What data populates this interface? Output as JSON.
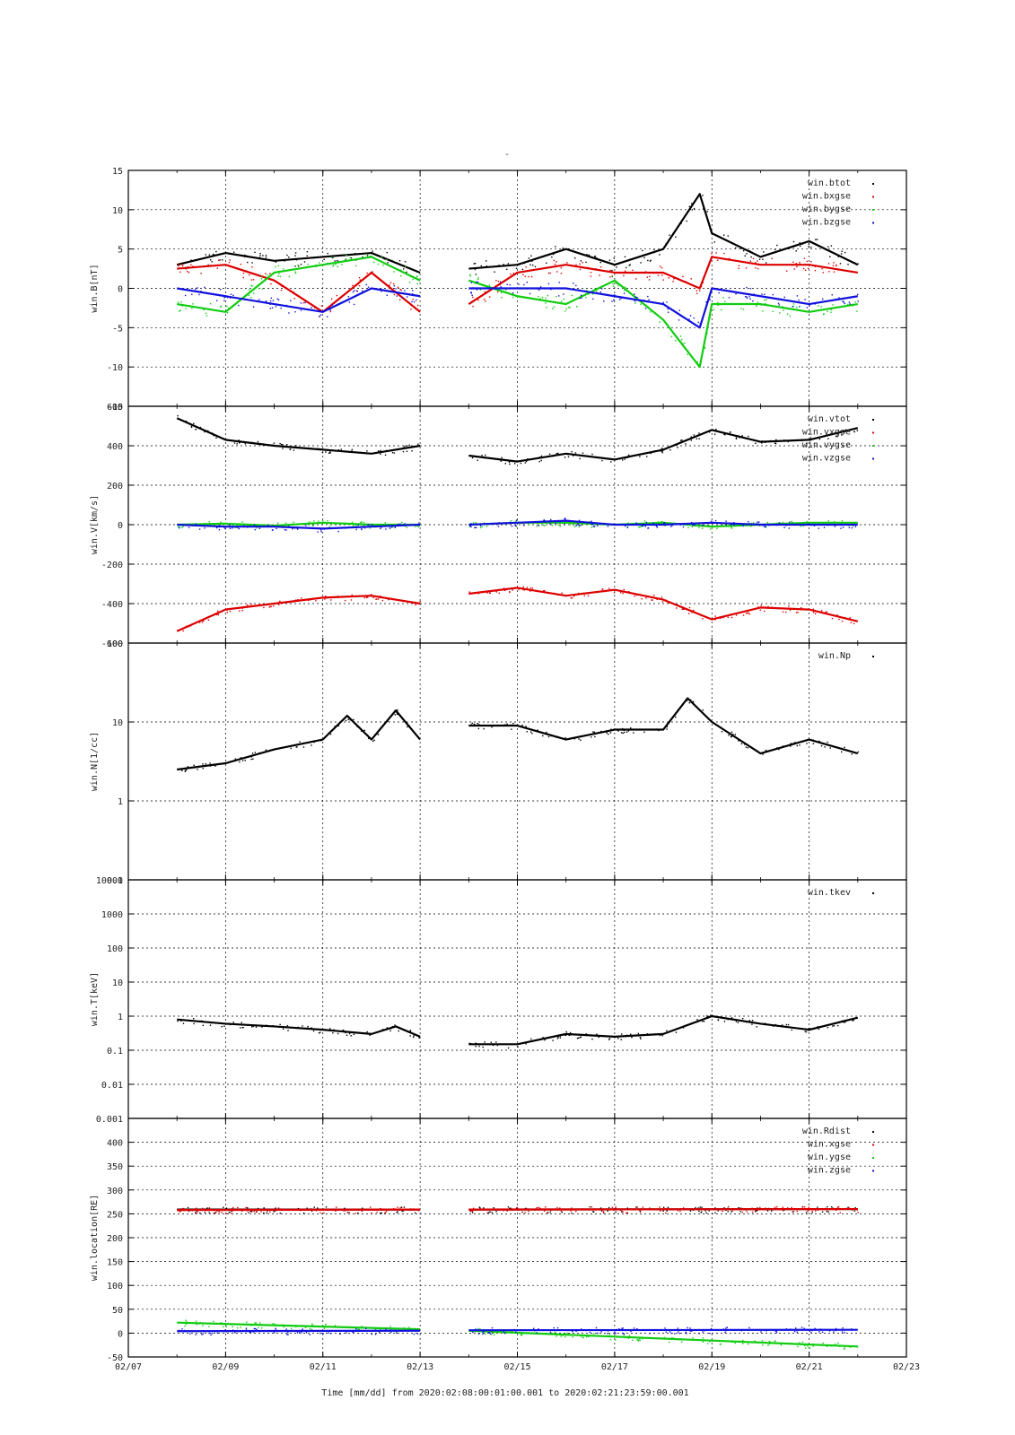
{
  "page": {
    "title": "-",
    "footer": "Time [mm/dd]  from 2020:02:08:00:01:00.001  to  2020:02:21:23:59:00.001"
  },
  "x_axis": {
    "unit_label": "Time [mm/dd]",
    "range": [
      "02/07",
      "02/23"
    ],
    "tick_labels": [
      "02/07",
      "02/09",
      "02/11",
      "02/13",
      "02/15",
      "02/17",
      "02/19",
      "02/21",
      "02/23"
    ],
    "data_span": [
      "2020:02:08:00:01:00.001",
      "2020:02:21:23:59:00.001"
    ]
  },
  "colors": {
    "black": "#000000",
    "red": "#dd0000",
    "green": "#11cc11",
    "blue": "#1111dd"
  },
  "chart_data": [
    {
      "type": "scatter",
      "ylabel": "win.B[nT]",
      "ylim": [
        -15,
        15
      ],
      "yticks": [
        15,
        10,
        5,
        0,
        -5,
        -10,
        -15
      ],
      "log": false,
      "grid": true,
      "legend_position": "top-right",
      "series": [
        {
          "name": "win.btot",
          "color": "#000000",
          "x": [
            "02/08",
            "02/09",
            "02/10",
            "02/11",
            "02/12",
            "02/13",
            "02/14",
            "02/15",
            "02/16",
            "02/17",
            "02/18",
            "02/18 18:00",
            "02/19",
            "02/20",
            "02/21",
            "02/22"
          ],
          "values": [
            3,
            4.5,
            3.5,
            4,
            4.5,
            2,
            2.5,
            3,
            5,
            3,
            5,
            12,
            7,
            4,
            6,
            3
          ]
        },
        {
          "name": "win.bxgse",
          "color": "#dd0000",
          "x": [
            "02/08",
            "02/09",
            "02/10",
            "02/11",
            "02/12",
            "02/13",
            "02/14",
            "02/15",
            "02/16",
            "02/17",
            "02/18",
            "02/18 18:00",
            "02/19",
            "02/20",
            "02/21",
            "02/22"
          ],
          "values": [
            2.5,
            3,
            1,
            -3,
            2,
            -3,
            -2,
            2,
            3,
            2,
            2,
            0,
            4,
            3,
            3,
            2
          ]
        },
        {
          "name": "win.bygse",
          "color": "#11cc11",
          "x": [
            "02/08",
            "02/09",
            "02/10",
            "02/11",
            "02/12",
            "02/13",
            "02/14",
            "02/15",
            "02/16",
            "02/17",
            "02/18",
            "02/18 18:00",
            "02/19",
            "02/20",
            "02/21",
            "02/22"
          ],
          "values": [
            -2,
            -3,
            2,
            3,
            4,
            1,
            1,
            -1,
            -2,
            1,
            -4,
            -10,
            -2,
            -2,
            -3,
            -2
          ]
        },
        {
          "name": "win.bzgse",
          "color": "#1111dd",
          "x": [
            "02/08",
            "02/09",
            "02/10",
            "02/11",
            "02/12",
            "02/13",
            "02/14",
            "02/15",
            "02/16",
            "02/17",
            "02/18",
            "02/18 18:00",
            "02/19",
            "02/20",
            "02/21",
            "02/22"
          ],
          "values": [
            0,
            -1,
            -2,
            -3,
            0,
            -1,
            0,
            0,
            0,
            -1,
            -2,
            -5,
            0,
            -1,
            -2,
            -1
          ]
        }
      ]
    },
    {
      "type": "scatter",
      "ylabel": "win.V[km/s]",
      "ylim": [
        -600,
        600
      ],
      "yticks": [
        600,
        400,
        200,
        0,
        -200,
        -400,
        -600
      ],
      "log": false,
      "grid": true,
      "legend_position": "top-right",
      "series": [
        {
          "name": "win.vtot",
          "color": "#000000",
          "x": [
            "02/08",
            "02/09",
            "02/10",
            "02/11",
            "02/12",
            "02/13",
            "02/14",
            "02/15",
            "02/16",
            "02/17",
            "02/18",
            "02/19",
            "02/20",
            "02/21",
            "02/22"
          ],
          "values": [
            540,
            430,
            400,
            380,
            360,
            400,
            350,
            320,
            360,
            330,
            380,
            480,
            420,
            430,
            490
          ]
        },
        {
          "name": "win.vxgse",
          "color": "#dd0000",
          "x": [
            "02/08",
            "02/09",
            "02/10",
            "02/11",
            "02/12",
            "02/13",
            "02/14",
            "02/15",
            "02/16",
            "02/17",
            "02/18",
            "02/19",
            "02/20",
            "02/21",
            "02/22"
          ],
          "values": [
            -540,
            -430,
            -400,
            -370,
            -360,
            -400,
            -350,
            -320,
            -360,
            -330,
            -380,
            -480,
            -420,
            -430,
            -490
          ]
        },
        {
          "name": "win.vygse",
          "color": "#11cc11",
          "x": [
            "02/08",
            "02/09",
            "02/10",
            "02/11",
            "02/12",
            "02/13",
            "02/14",
            "02/15",
            "02/16",
            "02/17",
            "02/18",
            "02/19",
            "02/20",
            "02/21",
            "02/22"
          ],
          "values": [
            0,
            5,
            -5,
            10,
            0,
            0,
            0,
            10,
            10,
            0,
            10,
            -10,
            0,
            10,
            10
          ]
        },
        {
          "name": "win.vzgse",
          "color": "#1111dd",
          "x": [
            "02/08",
            "02/09",
            "02/10",
            "02/11",
            "02/12",
            "02/13",
            "02/14",
            "02/15",
            "02/16",
            "02/17",
            "02/18",
            "02/19",
            "02/20",
            "02/21",
            "02/22"
          ],
          "values": [
            0,
            -10,
            -10,
            -20,
            -10,
            0,
            0,
            10,
            20,
            0,
            0,
            10,
            0,
            0,
            0
          ]
        }
      ]
    },
    {
      "type": "scatter",
      "ylabel": "win.N[1/cc]",
      "ylim": [
        0.1,
        100
      ],
      "yticks": [
        100,
        10,
        1,
        0.1
      ],
      "log": true,
      "grid": true,
      "legend_position": "top-right",
      "series": [
        {
          "name": "win.Np",
          "color": "#000000",
          "x": [
            "02/08",
            "02/09",
            "02/10",
            "02/11",
            "02/11 12:00",
            "02/12",
            "02/12 12:00",
            "02/13",
            "02/14",
            "02/15",
            "02/16",
            "02/17",
            "02/18",
            "02/18 12:00",
            "02/19",
            "02/20",
            "02/21",
            "02/22"
          ],
          "values": [
            2.5,
            3,
            4.5,
            6,
            12,
            6,
            14,
            6,
            9,
            9,
            6,
            8,
            8,
            20,
            10,
            4,
            6,
            4
          ]
        }
      ]
    },
    {
      "type": "scatter",
      "ylabel": "win.T[keV]",
      "ylim": [
        0.001,
        10000
      ],
      "yticks": [
        10000,
        1000,
        100,
        10,
        1,
        0.1,
        0.01,
        0.001
      ],
      "log": true,
      "grid": true,
      "legend_position": "top-right",
      "series": [
        {
          "name": "win.tkev",
          "color": "#000000",
          "x": [
            "02/08",
            "02/09",
            "02/10",
            "02/11",
            "02/12",
            "02/12 12:00",
            "02/13",
            "02/14",
            "02/15",
            "02/16",
            "02/17",
            "02/18",
            "02/19",
            "02/20",
            "02/21",
            "02/22"
          ],
          "values": [
            0.8,
            0.6,
            0.5,
            0.4,
            0.3,
            0.5,
            0.25,
            0.15,
            0.15,
            0.3,
            0.25,
            0.3,
            1.0,
            0.6,
            0.4,
            0.9
          ]
        }
      ]
    },
    {
      "type": "scatter",
      "ylabel": "win.location[RE]",
      "ylim": [
        -50,
        450
      ],
      "yticks": [
        400,
        350,
        300,
        250,
        200,
        150,
        100,
        50,
        0,
        -50
      ],
      "log": false,
      "grid": true,
      "legend_position": "top-right",
      "series": [
        {
          "name": "win.Rdist",
          "color": "#000000",
          "x": [
            "02/08",
            "02/13",
            "02/14",
            "02/22"
          ],
          "values": [
            259,
            259,
            259,
            260
          ]
        },
        {
          "name": "win.xgse",
          "color": "#dd0000",
          "x": [
            "02/08",
            "02/13",
            "02/14",
            "02/22"
          ],
          "values": [
            258,
            259,
            259,
            260
          ]
        },
        {
          "name": "win.ygse",
          "color": "#11cc11",
          "x": [
            "02/08",
            "02/13",
            "02/14",
            "02/22"
          ],
          "values": [
            22,
            8,
            5,
            -28
          ]
        },
        {
          "name": "win.zgse",
          "color": "#1111dd",
          "x": [
            "02/08",
            "02/13",
            "02/14",
            "02/22"
          ],
          "values": [
            4,
            5,
            6,
            7
          ]
        }
      ]
    }
  ]
}
